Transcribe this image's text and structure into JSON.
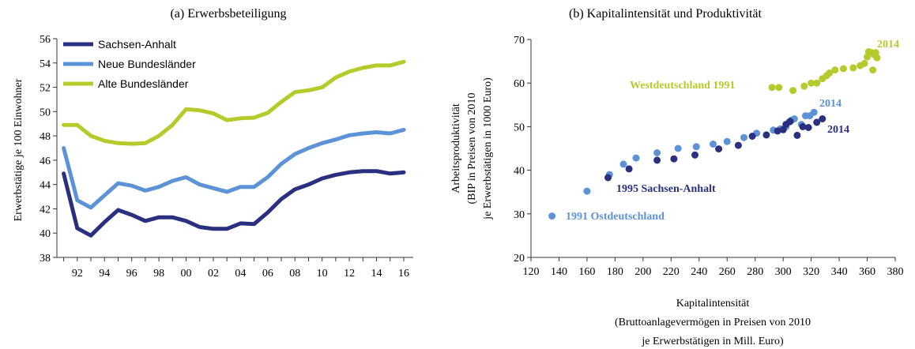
{
  "colors": {
    "sachsen": "#2a2f7f",
    "neue": "#5b93d6",
    "alte": "#b5cb2b",
    "axis": "#333333"
  },
  "chart_data": [
    {
      "type": "line",
      "title": "(a) Erwerbsbeteiligung",
      "ylabel": "Erwerbstätige je 100 Einwohner",
      "xlabel": "",
      "ylim": [
        38,
        56
      ],
      "yticks": [
        38,
        40,
        42,
        44,
        46,
        48,
        50,
        52,
        54,
        56
      ],
      "xticks": [
        {
          "year": 1992,
          "label": "92"
        },
        {
          "year": 1994,
          "label": "94"
        },
        {
          "year": 1996,
          "label": "96"
        },
        {
          "year": 1998,
          "label": "98"
        },
        {
          "year": 2000,
          "label": "00"
        },
        {
          "year": 2002,
          "label": "02"
        },
        {
          "year": 2004,
          "label": "04"
        },
        {
          "year": 2006,
          "label": "06"
        },
        {
          "year": 2008,
          "label": "08"
        },
        {
          "year": 2010,
          "label": "10"
        },
        {
          "year": 2012,
          "label": "12"
        },
        {
          "year": 2014,
          "label": "14"
        },
        {
          "year": 2016,
          "label": "16"
        }
      ],
      "legend_position": "top-left",
      "x": [
        1991,
        1992,
        1993,
        1994,
        1995,
        1996,
        1997,
        1998,
        1999,
        2000,
        2001,
        2002,
        2003,
        2004,
        2005,
        2006,
        2007,
        2008,
        2009,
        2010,
        2011,
        2012,
        2013,
        2014,
        2015,
        2016
      ],
      "series": [
        {
          "name": "Sachsen-Anhalt",
          "color_key": "sachsen",
          "values": [
            44.9,
            40.4,
            39.8,
            40.9,
            41.9,
            41.5,
            41.0,
            41.3,
            41.3,
            41.0,
            40.5,
            40.35,
            40.35,
            40.8,
            40.75,
            41.7,
            42.8,
            43.6,
            44.0,
            44.5,
            44.8,
            45.0,
            45.1,
            45.1,
            44.9,
            45.0
          ]
        },
        {
          "name": "Neue Bundesländer",
          "color_key": "neue",
          "values": [
            47.0,
            42.7,
            42.1,
            43.1,
            44.1,
            43.9,
            43.5,
            43.8,
            44.3,
            44.6,
            44.0,
            43.7,
            43.4,
            43.8,
            43.8,
            44.6,
            45.7,
            46.5,
            47.0,
            47.4,
            47.7,
            48.05,
            48.2,
            48.3,
            48.2,
            48.5
          ]
        },
        {
          "name": "Alte Bundesländer",
          "color_key": "alte",
          "values": [
            48.9,
            48.9,
            48.0,
            47.6,
            47.4,
            47.35,
            47.4,
            48.0,
            48.9,
            50.2,
            50.1,
            49.85,
            49.3,
            49.45,
            49.5,
            49.9,
            50.8,
            51.6,
            51.75,
            52.0,
            52.8,
            53.3,
            53.6,
            53.8,
            53.8,
            54.1
          ]
        }
      ]
    },
    {
      "type": "scatter",
      "title": "(b) Kapitalintensität und Produktivität",
      "xlabel_lines": [
        "Kapitalintensität",
        "(Bruttoanlagevermögen in Preisen von 2010",
        "je Erwerbstätigen in Mill. Euro)"
      ],
      "ylabel_lines": [
        "Arbeitsproduktivität",
        "(BIP in Preisen von 2010",
        "je Erwerbstätigen in 1000 Euro)"
      ],
      "xlim": [
        120,
        380
      ],
      "ylim": [
        20,
        70
      ],
      "xticks": [
        120,
        140,
        160,
        180,
        200,
        220,
        240,
        260,
        280,
        300,
        320,
        340,
        360,
        380
      ],
      "yticks": [
        20,
        30,
        40,
        50,
        60,
        70
      ],
      "series": [
        {
          "name": "Westdeutschland",
          "color_key": "alte",
          "points": [
            [
              292,
              59.0
            ],
            [
              297,
              59.0
            ],
            [
              307,
              58.3
            ],
            [
              315,
              59.3
            ],
            [
              320,
              60.0
            ],
            [
              324,
              60.0
            ],
            [
              328,
              61.0
            ],
            [
              331,
              61.7
            ],
            [
              333,
              62.3
            ],
            [
              337,
              63.0
            ],
            [
              343,
              63.3
            ],
            [
              350,
              63.5
            ],
            [
              355,
              64.0
            ],
            [
              358,
              64.5
            ],
            [
              360,
              66.0
            ],
            [
              361,
              67.2
            ],
            [
              363,
              67.0
            ],
            [
              364,
              63.0
            ],
            [
              365,
              66.5
            ],
            [
              366,
              67.0
            ],
            [
              367,
              65.8
            ]
          ]
        },
        {
          "name": "Ostdeutschland",
          "color_key": "neue",
          "points": [
            [
              135,
              29.5
            ],
            [
              160,
              35.2
            ],
            [
              176,
              39.0
            ],
            [
              186,
              41.4
            ],
            [
              195,
              42.8
            ],
            [
              210,
              44.0
            ],
            [
              225,
              45.0
            ],
            [
              238,
              45.4
            ],
            [
              250,
              46.0
            ],
            [
              260,
              46.6
            ],
            [
              272,
              47.5
            ],
            [
              281,
              48.5
            ],
            [
              293,
              49.2
            ],
            [
              298,
              49.5
            ],
            [
              302,
              50.0
            ],
            [
              304,
              51.0
            ],
            [
              306,
              51.5
            ],
            [
              308,
              51.8
            ],
            [
              313,
              50.5
            ],
            [
              316,
              52.5
            ],
            [
              319,
              52.5
            ],
            [
              322,
              53.3
            ]
          ]
        },
        {
          "name": "Sachsen-Anhalt",
          "color_key": "sachsen",
          "points": [
            [
              175,
              38.3
            ],
            [
              190,
              40.3
            ],
            [
              210,
              42.3
            ],
            [
              222,
              42.6
            ],
            [
              237,
              43.5
            ],
            [
              254,
              44.9
            ],
            [
              268,
              45.7
            ],
            [
              278,
              47.8
            ],
            [
              288,
              48.1
            ],
            [
              296,
              49.0
            ],
            [
              300,
              49.3
            ],
            [
              302,
              50.5
            ],
            [
              305,
              51.2
            ],
            [
              310,
              48.0
            ],
            [
              314,
              50.0
            ],
            [
              318,
              49.8
            ],
            [
              324,
              51.0
            ],
            [
              328,
              51.8
            ]
          ]
        }
      ],
      "annotations": [
        {
          "text": "Westdeutschland 1991",
          "color_key": "alte"
        },
        {
          "text": "2014",
          "color_key": "alte"
        },
        {
          "text": "2014",
          "color_key": "neue"
        },
        {
          "text": "2014",
          "color_key": "sachsen"
        },
        {
          "text": "1995 Sachsen-Anhalt",
          "color_key": "sachsen"
        },
        {
          "text": "1991 Ostdeutschland",
          "color_key": "neue"
        }
      ]
    }
  ]
}
